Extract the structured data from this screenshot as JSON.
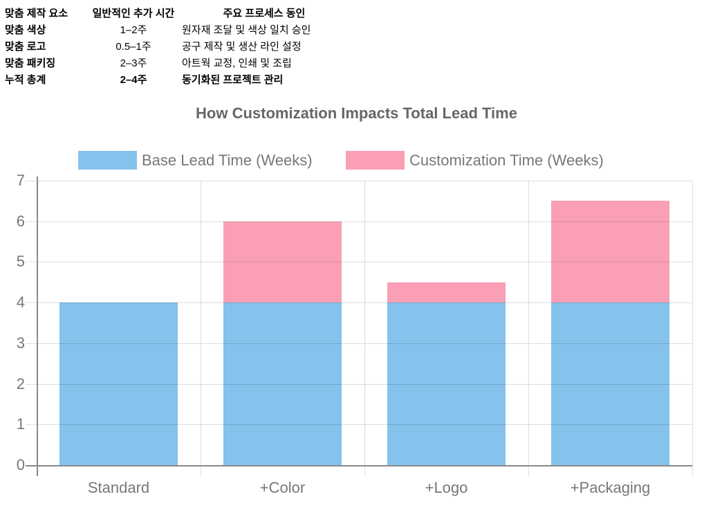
{
  "table": {
    "rows": [
      {
        "cells": [
          "맞춤 제작 요소",
          "일반적인 추가 시간",
          "주요 프로세스 동인"
        ],
        "bold": [
          true,
          true,
          true
        ]
      },
      {
        "cells": [
          "맞춤 색상",
          "1–2주",
          "원자재 조달 및 색상 일치 승인"
        ],
        "bold": [
          true,
          false,
          false
        ]
      },
      {
        "cells": [
          "맞춤 로고",
          "0.5–1주",
          "공구 제작 및 생산 라인 설정"
        ],
        "bold": [
          true,
          false,
          false
        ]
      },
      {
        "cells": [
          "맞춤 패키징",
          "2–3주",
          "아트웍 교정, 인쇄 및 조립"
        ],
        "bold": [
          true,
          false,
          false
        ]
      },
      {
        "cells": [
          "누적 총계",
          "2–4주",
          "동기화된 프로젝트 관리"
        ],
        "bold": [
          true,
          true,
          true
        ]
      }
    ]
  },
  "chart_data": {
    "type": "bar",
    "stacked": true,
    "title": "How Customization Impacts Total Lead Time",
    "categories": [
      "Standard",
      "+Color",
      "+Logo",
      "+Packaging"
    ],
    "series": [
      {
        "name": "Base Lead Time (Weeks)",
        "values": [
          4,
          4,
          4,
          4
        ],
        "color": "#85C2EC"
      },
      {
        "name": "Customization Time (Weeks)",
        "values": [
          0,
          2,
          0.5,
          2.5
        ],
        "color": "#FA9FB5"
      }
    ],
    "totals": [
      4,
      6,
      4.5,
      6.5
    ],
    "xlabel": "",
    "ylabel": "",
    "ylim": [
      0,
      7
    ],
    "yticks": [
      0,
      1,
      2,
      3,
      4,
      5,
      6,
      7
    ],
    "grid": true,
    "legend_position": "top",
    "colors": {
      "grid": "rgba(0,0,0,0.13)",
      "axis": "#888888",
      "tick_text": "#777777",
      "title": "#666666",
      "legend_text": "#777777",
      "table_text": "#000000"
    }
  }
}
